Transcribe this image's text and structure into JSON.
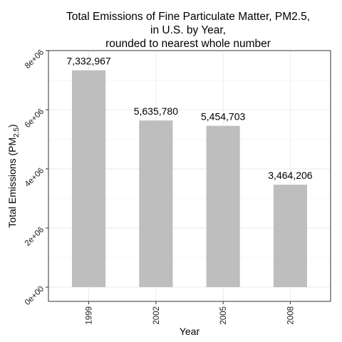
{
  "chart_data": {
    "type": "bar",
    "title_lines": [
      "Total Emissions of Fine Particulate Matter, PM2.5,",
      "in U.S. by Year,",
      "rounded to nearest whole number"
    ],
    "categories": [
      "1999",
      "2002",
      "2005",
      "2008"
    ],
    "values": [
      7332967,
      5635780,
      5454703,
      3464206
    ],
    "value_labels": [
      "7,332,967",
      "5,635,780",
      "5,454,703",
      "3,464,206"
    ],
    "xlabel": "Year",
    "ylabel": "Total Emissions (PM",
    "ylabel_subscript": "2.5",
    "ylabel_suffix": ")",
    "ylim": [
      0,
      8000000
    ],
    "yticks": [
      0,
      2000000,
      4000000,
      6000000,
      8000000
    ],
    "ytick_labels": [
      "0e+00",
      "2e+06",
      "4e+06",
      "6e+06",
      "8e+06"
    ],
    "grid": true,
    "bar_color": "#bebebe",
    "grid_color": "#ebebeb",
    "panel_border_color": "#333333",
    "legend": "none"
  }
}
